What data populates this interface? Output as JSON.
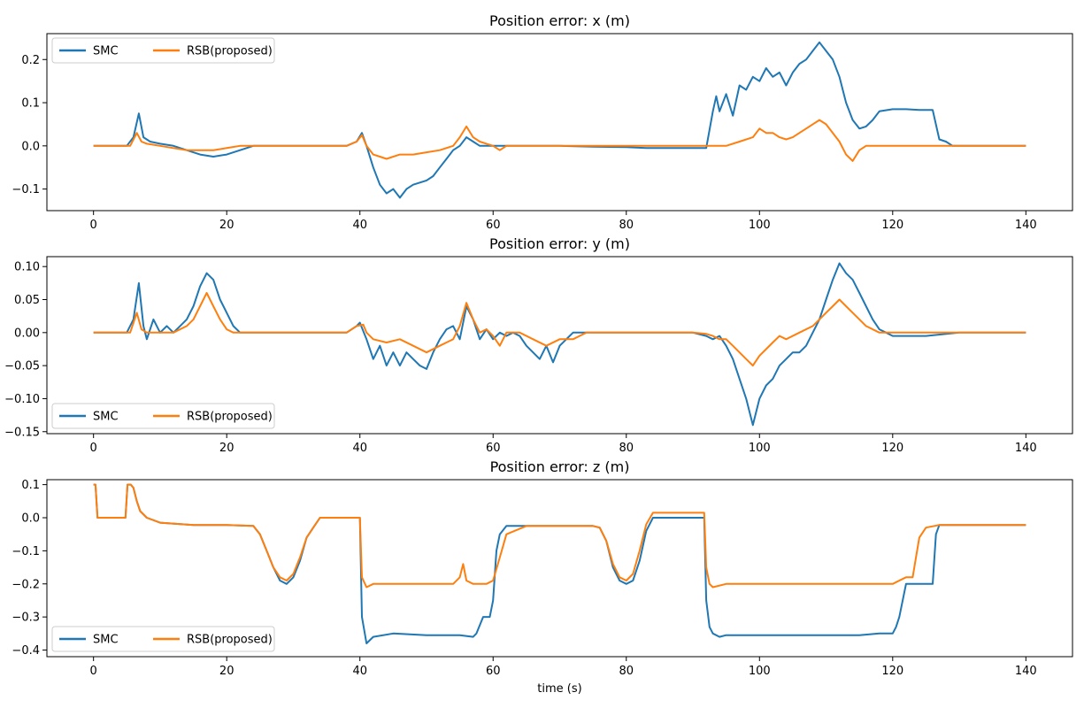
{
  "chart_data": [
    {
      "type": "line",
      "title": "Position error: x (m)",
      "xlabel": "",
      "ylabel": "",
      "xlim": [
        -7,
        147
      ],
      "ylim": [
        -0.15,
        0.26
      ],
      "xticks": [
        0,
        20,
        40,
        60,
        80,
        100,
        120,
        140
      ],
      "yticks": [
        -0.1,
        0.0,
        0.1,
        0.2
      ],
      "ytick_labels": [
        "−0.1",
        "0.0",
        "0.1",
        "0.2"
      ],
      "legend": "upper-left",
      "grid": false,
      "series": [
        {
          "name": "SMC",
          "color": "#1f77b4",
          "x": [
            0,
            5,
            6,
            6.8,
            7.5,
            8.5,
            10,
            12,
            14,
            16,
            18,
            20,
            22,
            24,
            26,
            30,
            35,
            38,
            39.5,
            40.3,
            41,
            42,
            43,
            44,
            45,
            46,
            47,
            48,
            49,
            50,
            51,
            52,
            53,
            54,
            55,
            56,
            57,
            58,
            60,
            65,
            70,
            75,
            80,
            83,
            88,
            92,
            93,
            93.5,
            94,
            95,
            96,
            97,
            98,
            99,
            100,
            101,
            102,
            103,
            104,
            105,
            106,
            107,
            108,
            109,
            110,
            111,
            112,
            113,
            114,
            115,
            116,
            117,
            118,
            120,
            122,
            124,
            126,
            127,
            128,
            129,
            130,
            134,
            140
          ],
          "y": [
            0,
            0,
            0.02,
            0.075,
            0.02,
            0.01,
            0.005,
            0.0,
            -0.01,
            -0.02,
            -0.025,
            -0.02,
            -0.01,
            0,
            0,
            0,
            0,
            0,
            0.01,
            0.03,
            0.0,
            -0.05,
            -0.09,
            -0.11,
            -0.1,
            -0.12,
            -0.1,
            -0.09,
            -0.085,
            -0.08,
            -0.07,
            -0.05,
            -0.03,
            -0.01,
            0.0,
            0.02,
            0.01,
            0.0,
            0.0,
            0,
            0,
            -0.002,
            -0.003,
            -0.005,
            -0.005,
            -0.005,
            0.08,
            0.115,
            0.08,
            0.12,
            0.07,
            0.14,
            0.13,
            0.16,
            0.15,
            0.18,
            0.16,
            0.17,
            0.14,
            0.17,
            0.19,
            0.2,
            0.22,
            0.24,
            0.22,
            0.2,
            0.16,
            0.1,
            0.06,
            0.04,
            0.045,
            0.06,
            0.08,
            0.085,
            0.085,
            0.083,
            0.083,
            0.015,
            0.01,
            0.0,
            0.0,
            0.0,
            0
          ]
        },
        {
          "name": "RSB(proposed)",
          "color": "#ff7f0e",
          "x": [
            0,
            5.5,
            6.5,
            7.2,
            8,
            10,
            12,
            14,
            16,
            18,
            20,
            22,
            24,
            30,
            38,
            39.5,
            40.3,
            41,
            42,
            43,
            44,
            46,
            48,
            50,
            52,
            54,
            55,
            56,
            57,
            58,
            59,
            60,
            61,
            62,
            70,
            80,
            90,
            95,
            97,
            99,
            100,
            101,
            102,
            103,
            104,
            105,
            106,
            107,
            108,
            109,
            110,
            111,
            112,
            113,
            114,
            115,
            116,
            118,
            120,
            125,
            130,
            140
          ],
          "y": [
            0,
            0,
            0.03,
            0.01,
            0.005,
            0.0,
            -0.005,
            -0.01,
            -0.01,
            -0.01,
            -0.005,
            0,
            0,
            0,
            0,
            0.01,
            0.025,
            0.0,
            -0.02,
            -0.025,
            -0.03,
            -0.02,
            -0.02,
            -0.015,
            -0.01,
            0.0,
            0.02,
            0.045,
            0.02,
            0.01,
            0.005,
            0.0,
            -0.01,
            0.0,
            0,
            0,
            0,
            0,
            0.01,
            0.02,
            0.04,
            0.03,
            0.03,
            0.02,
            0.015,
            0.02,
            0.03,
            0.04,
            0.05,
            0.06,
            0.05,
            0.03,
            0.01,
            -0.02,
            -0.035,
            -0.01,
            0.0,
            0.0,
            0.0,
            0,
            0,
            0
          ]
        }
      ]
    },
    {
      "type": "line",
      "title": "Position error: y (m)",
      "xlabel": "",
      "ylabel": "",
      "xlim": [
        -7,
        147
      ],
      "ylim": [
        -0.153,
        0.115
      ],
      "xticks": [
        0,
        20,
        40,
        60,
        80,
        100,
        120,
        140
      ],
      "yticks": [
        -0.15,
        -0.1,
        -0.05,
        0.0,
        0.05,
        0.1
      ],
      "ytick_labels": [
        "−0.15",
        "−0.10",
        "−0.05",
        "0.00",
        "0.05",
        "0.10"
      ],
      "legend": "lower-left",
      "grid": false,
      "series": [
        {
          "name": "SMC",
          "color": "#1f77b4",
          "x": [
            0,
            5,
            6,
            6.8,
            7.5,
            8,
            9,
            10,
            11,
            12,
            13,
            14,
            15,
            16,
            17,
            18,
            19,
            20,
            21,
            22,
            24,
            30,
            38,
            39.5,
            40,
            41,
            42,
            43,
            44,
            45,
            46,
            47,
            48,
            49,
            50,
            51,
            52,
            53,
            54,
            55,
            56,
            57,
            58,
            59,
            60,
            61,
            62,
            63,
            64,
            65,
            66,
            67,
            68,
            69,
            70,
            71,
            72,
            74,
            76,
            80,
            85,
            90,
            92,
            93,
            94,
            95,
            96,
            97,
            98,
            99,
            100,
            101,
            102,
            103,
            104,
            105,
            106,
            107,
            108,
            109,
            110,
            111,
            112,
            113,
            114,
            115,
            116,
            117,
            118,
            119,
            120,
            125,
            130,
            140
          ],
          "y": [
            0,
            0,
            0.02,
            0.075,
            0.01,
            -0.01,
            0.02,
            0.0,
            0.01,
            0.0,
            0.01,
            0.02,
            0.04,
            0.07,
            0.09,
            0.08,
            0.05,
            0.03,
            0.01,
            0.0,
            0.0,
            0,
            0,
            0.01,
            0.015,
            -0.01,
            -0.04,
            -0.02,
            -0.05,
            -0.03,
            -0.05,
            -0.03,
            -0.04,
            -0.05,
            -0.055,
            -0.03,
            -0.01,
            0.005,
            0.01,
            -0.01,
            0.04,
            0.02,
            -0.01,
            0.005,
            -0.01,
            0.0,
            -0.005,
            0.0,
            -0.005,
            -0.02,
            -0.03,
            -0.04,
            -0.02,
            -0.045,
            -0.02,
            -0.01,
            0.0,
            0.0,
            0.0,
            0,
            0,
            0,
            -0.005,
            -0.01,
            -0.005,
            -0.02,
            -0.04,
            -0.07,
            -0.1,
            -0.14,
            -0.1,
            -0.08,
            -0.07,
            -0.05,
            -0.04,
            -0.03,
            -0.03,
            -0.02,
            0.0,
            0.02,
            0.05,
            0.08,
            0.105,
            0.09,
            0.08,
            0.06,
            0.04,
            0.02,
            0.005,
            0.0,
            -0.005,
            -0.005,
            0,
            0
          ]
        },
        {
          "name": "RSB(proposed)",
          "color": "#ff7f0e",
          "x": [
            0,
            5.5,
            6.5,
            7.2,
            8,
            10,
            12,
            14,
            15,
            16,
            17,
            18,
            19,
            20,
            21,
            22,
            24,
            30,
            38,
            39.5,
            40.5,
            41,
            42,
            44,
            46,
            48,
            50,
            52,
            54,
            55,
            56,
            57,
            58,
            59,
            60,
            61,
            62,
            64,
            66,
            68,
            70,
            72,
            74,
            80,
            90,
            92,
            93,
            94,
            95,
            96,
            97,
            98,
            99,
            100,
            101,
            102,
            103,
            104,
            106,
            108,
            110,
            111,
            112,
            113,
            114,
            115,
            116,
            118,
            120,
            125,
            130,
            140
          ],
          "y": [
            0,
            0,
            0.03,
            0.005,
            0.0,
            0.0,
            0.0,
            0.01,
            0.02,
            0.04,
            0.06,
            0.04,
            0.02,
            0.005,
            0.0,
            0.0,
            0.0,
            0,
            0,
            0.01,
            0.012,
            0.0,
            -0.01,
            -0.015,
            -0.01,
            -0.02,
            -0.03,
            -0.02,
            -0.01,
            0.01,
            0.045,
            0.02,
            0.0,
            0.005,
            -0.005,
            -0.02,
            0.0,
            0.0,
            -0.01,
            -0.02,
            -0.01,
            -0.01,
            0.0,
            0,
            0,
            -0.002,
            -0.005,
            -0.01,
            -0.01,
            -0.02,
            -0.03,
            -0.04,
            -0.05,
            -0.035,
            -0.025,
            -0.015,
            -0.005,
            -0.01,
            0.0,
            0.01,
            0.03,
            0.04,
            0.05,
            0.04,
            0.03,
            0.02,
            0.01,
            0.0,
            0.0,
            0,
            0,
            0
          ]
        }
      ]
    },
    {
      "type": "line",
      "title": "Position error: z (m)",
      "xlabel": "time (s)",
      "ylabel": "",
      "xlim": [
        -7,
        147
      ],
      "ylim": [
        -0.42,
        0.115
      ],
      "xticks": [
        0,
        20,
        40,
        60,
        80,
        100,
        120,
        140
      ],
      "yticks": [
        -0.4,
        -0.3,
        -0.2,
        -0.1,
        0.0,
        0.1
      ],
      "ytick_labels": [
        "−0.4",
        "−0.3",
        "−0.2",
        "−0.1",
        "0.0",
        "0.1"
      ],
      "legend": "lower-left",
      "grid": false,
      "series": [
        {
          "name": "SMC",
          "color": "#1f77b4",
          "x": [
            0,
            0.3,
            0.6,
            4.8,
            5.1,
            5.6,
            6,
            6.5,
            7,
            8,
            10,
            15,
            20,
            24,
            25,
            26,
            27,
            28,
            29,
            30,
            31,
            32,
            33,
            34,
            36,
            40,
            40.3,
            41,
            42,
            45,
            50,
            55,
            57,
            57.5,
            58.5,
            59.5,
            60,
            60.5,
            61,
            62,
            65,
            70,
            75,
            76,
            77,
            78,
            79,
            80,
            81,
            82,
            83,
            84,
            86,
            90,
            91.7,
            92,
            92.5,
            93,
            94,
            95,
            100,
            105,
            110,
            115,
            118,
            119.5,
            120,
            120.5,
            121,
            121.5,
            122,
            126,
            126.5,
            127,
            128,
            130,
            140
          ],
          "y": [
            0.1,
            0.1,
            0.0,
            0.0,
            0.1,
            0.1,
            0.09,
            0.05,
            0.02,
            0.0,
            -0.015,
            -0.022,
            -0.022,
            -0.025,
            -0.05,
            -0.1,
            -0.15,
            -0.19,
            -0.2,
            -0.18,
            -0.13,
            -0.06,
            -0.03,
            0.0,
            0.0,
            0.0,
            -0.3,
            -0.38,
            -0.36,
            -0.35,
            -0.355,
            -0.355,
            -0.36,
            -0.35,
            -0.3,
            -0.3,
            -0.25,
            -0.1,
            -0.05,
            -0.025,
            -0.025,
            -0.025,
            -0.025,
            -0.03,
            -0.07,
            -0.15,
            -0.19,
            -0.2,
            -0.19,
            -0.13,
            -0.04,
            0.0,
            0.0,
            0.0,
            0.0,
            -0.25,
            -0.33,
            -0.35,
            -0.36,
            -0.355,
            -0.355,
            -0.355,
            -0.355,
            -0.355,
            -0.35,
            -0.35,
            -0.35,
            -0.33,
            -0.3,
            -0.25,
            -0.2,
            -0.2,
            -0.05,
            -0.022,
            -0.022,
            -0.022,
            -0.022
          ]
        },
        {
          "name": "RSB(proposed)",
          "color": "#ff7f0e",
          "x": [
            0,
            0.3,
            0.6,
            4.8,
            5.1,
            5.6,
            6,
            6.5,
            7,
            8,
            10,
            15,
            20,
            24,
            25,
            26,
            27,
            28,
            29,
            30,
            31,
            32,
            33,
            34,
            36,
            40,
            40.3,
            41,
            42,
            45,
            50,
            54,
            55,
            55.5,
            56,
            57,
            58,
            59,
            60,
            61,
            62,
            65,
            70,
            75,
            76,
            77,
            78,
            79,
            80,
            81,
            82,
            83,
            84,
            86,
            90,
            91.7,
            92,
            92.5,
            93,
            95,
            100,
            105,
            110,
            115,
            120,
            121,
            122,
            123,
            123.5,
            124,
            125,
            127,
            130,
            140
          ],
          "y": [
            0.1,
            0.1,
            0.0,
            0.0,
            0.1,
            0.1,
            0.09,
            0.05,
            0.02,
            0.0,
            -0.015,
            -0.022,
            -0.022,
            -0.025,
            -0.05,
            -0.1,
            -0.15,
            -0.18,
            -0.19,
            -0.17,
            -0.12,
            -0.06,
            -0.03,
            0.0,
            0.0,
            0.0,
            -0.18,
            -0.21,
            -0.2,
            -0.2,
            -0.2,
            -0.2,
            -0.18,
            -0.14,
            -0.19,
            -0.2,
            -0.2,
            -0.2,
            -0.19,
            -0.12,
            -0.05,
            -0.025,
            -0.025,
            -0.025,
            -0.03,
            -0.07,
            -0.14,
            -0.18,
            -0.19,
            -0.17,
            -0.1,
            -0.02,
            0.015,
            0.015,
            0.015,
            0.015,
            -0.15,
            -0.2,
            -0.21,
            -0.2,
            -0.2,
            -0.2,
            -0.2,
            -0.2,
            -0.2,
            -0.19,
            -0.18,
            -0.18,
            -0.12,
            -0.06,
            -0.03,
            -0.022,
            -0.022,
            -0.022
          ]
        }
      ]
    }
  ]
}
